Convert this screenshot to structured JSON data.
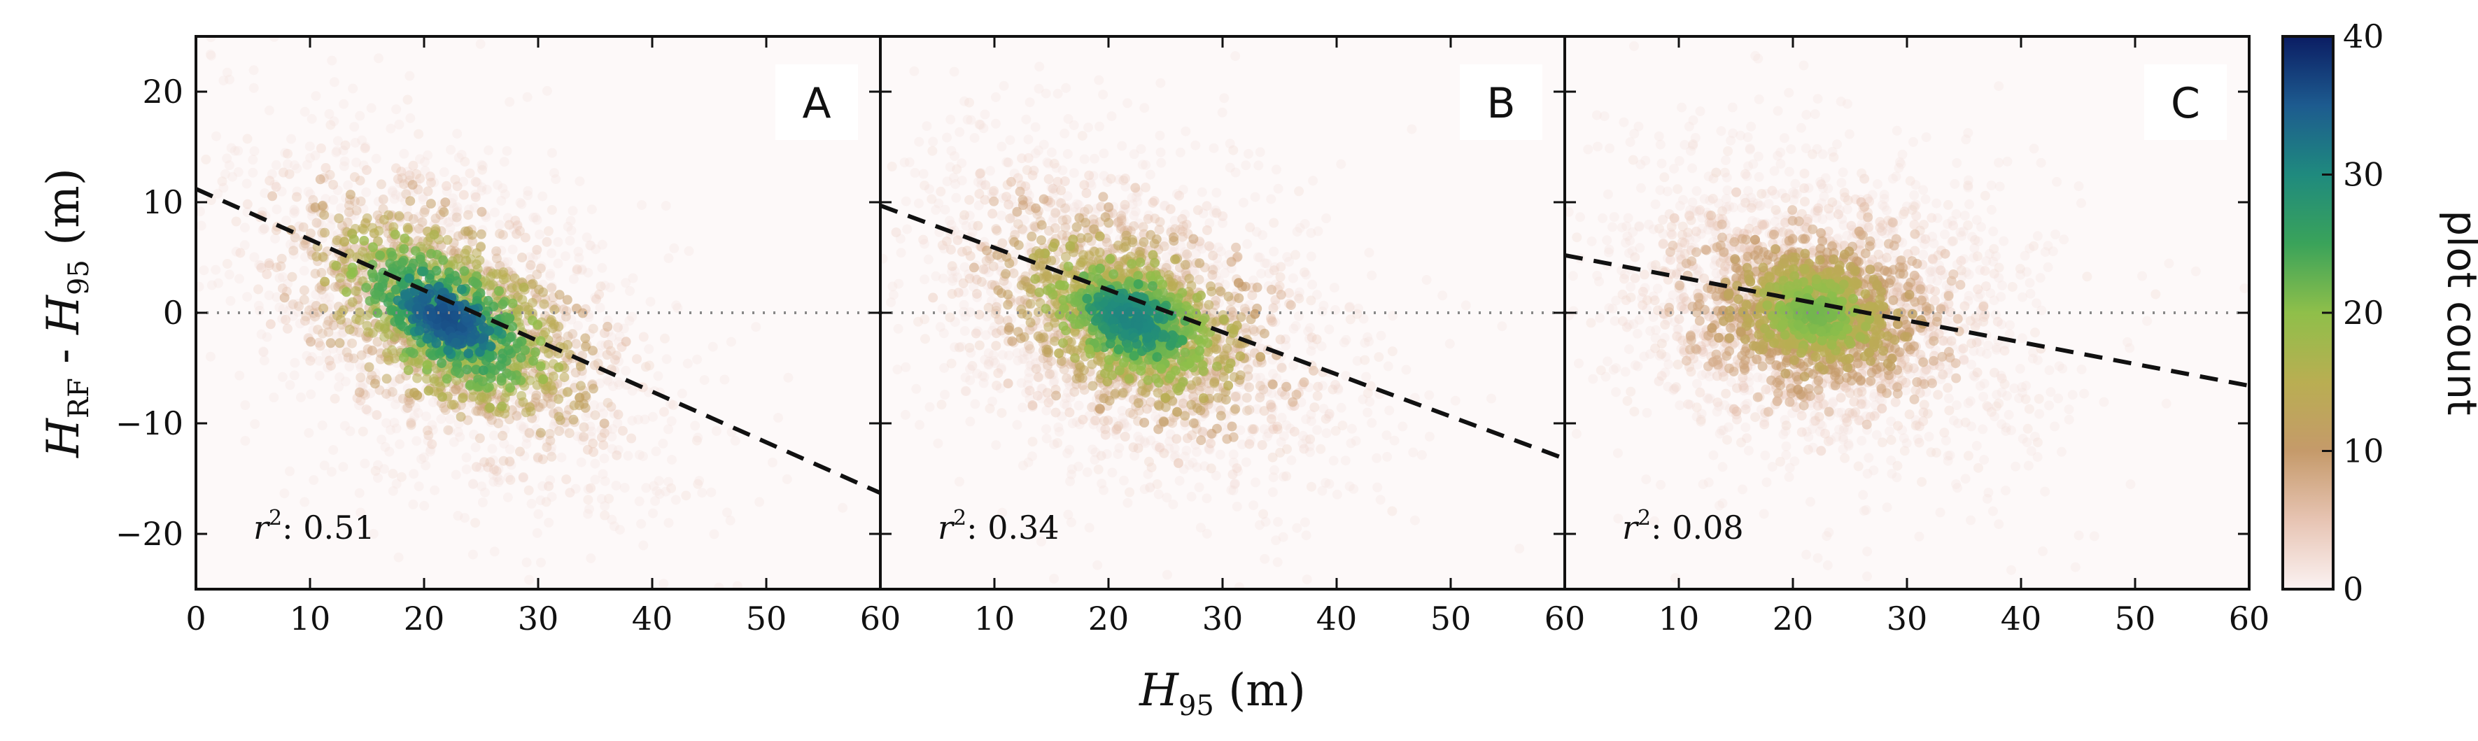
{
  "chart_data": [
    {
      "type": "heatmap",
      "panel": "A",
      "r2_label": "r",
      "r2_sup": "2",
      "r2_value": ": 0.51",
      "xlim": [
        0,
        60
      ],
      "ylim": [
        -25,
        25
      ],
      "fit_line": {
        "x": [
          0,
          60
        ],
        "y": [
          11.2,
          -16.3
        ]
      },
      "reference_line_y": 0,
      "density_center": [
        22,
        -0.5
      ],
      "density_peak": 40
    },
    {
      "type": "heatmap",
      "panel": "B",
      "r2_label": "r",
      "r2_sup": "2",
      "r2_value": ": 0.34",
      "xlim": [
        0,
        60
      ],
      "ylim": [
        -25,
        25
      ],
      "fit_line": {
        "x": [
          0,
          60
        ],
        "y": [
          9.7,
          -13.2
        ]
      },
      "reference_line_y": 0,
      "density_center": [
        22,
        -0.5
      ],
      "density_peak": 34
    },
    {
      "type": "heatmap",
      "panel": "C",
      "r2_label": "r",
      "r2_sup": "2",
      "r2_value": ": 0.08",
      "xlim": [
        0,
        60
      ],
      "ylim": [
        -25,
        25
      ],
      "fit_line": {
        "x": [
          0,
          60
        ],
        "y": [
          5.2,
          -6.6
        ]
      },
      "reference_line_y": 0,
      "density_center": [
        22,
        0
      ],
      "density_peak": 24
    }
  ],
  "axes": {
    "x_ticks": [
      0,
      10,
      20,
      30,
      40,
      50,
      60
    ],
    "x_tick_labels": [
      "0",
      "10",
      "20",
      "30",
      "40",
      "50",
      "60"
    ],
    "y_ticks": [
      20,
      10,
      0,
      -10,
      -20
    ],
    "y_tick_labels": [
      "20",
      "10",
      "0",
      "−10",
      "−20"
    ],
    "xlabel_main": "H",
    "xlabel_sub": "95",
    "xlabel_unit": " (m)",
    "ylabel_h1": "H",
    "ylabel_sub1": "RF",
    "ylabel_dash": " - ",
    "ylabel_h2": "H",
    "ylabel_sub2": "95",
    "ylabel_unit": " (m)"
  },
  "colorbar": {
    "title": "plot count",
    "range": [
      0,
      40
    ],
    "ticks": [
      0,
      10,
      20,
      30,
      40
    ],
    "tick_labels": [
      "0",
      "10",
      "20",
      "30",
      "40"
    ],
    "stops": [
      "#fbf2f2",
      "#e7c4b3",
      "#c59a6a",
      "#b9ae52",
      "#8fbf4a",
      "#3aa35a",
      "#1f8a7e",
      "#1d5b8f",
      "#0b1d63"
    ]
  }
}
